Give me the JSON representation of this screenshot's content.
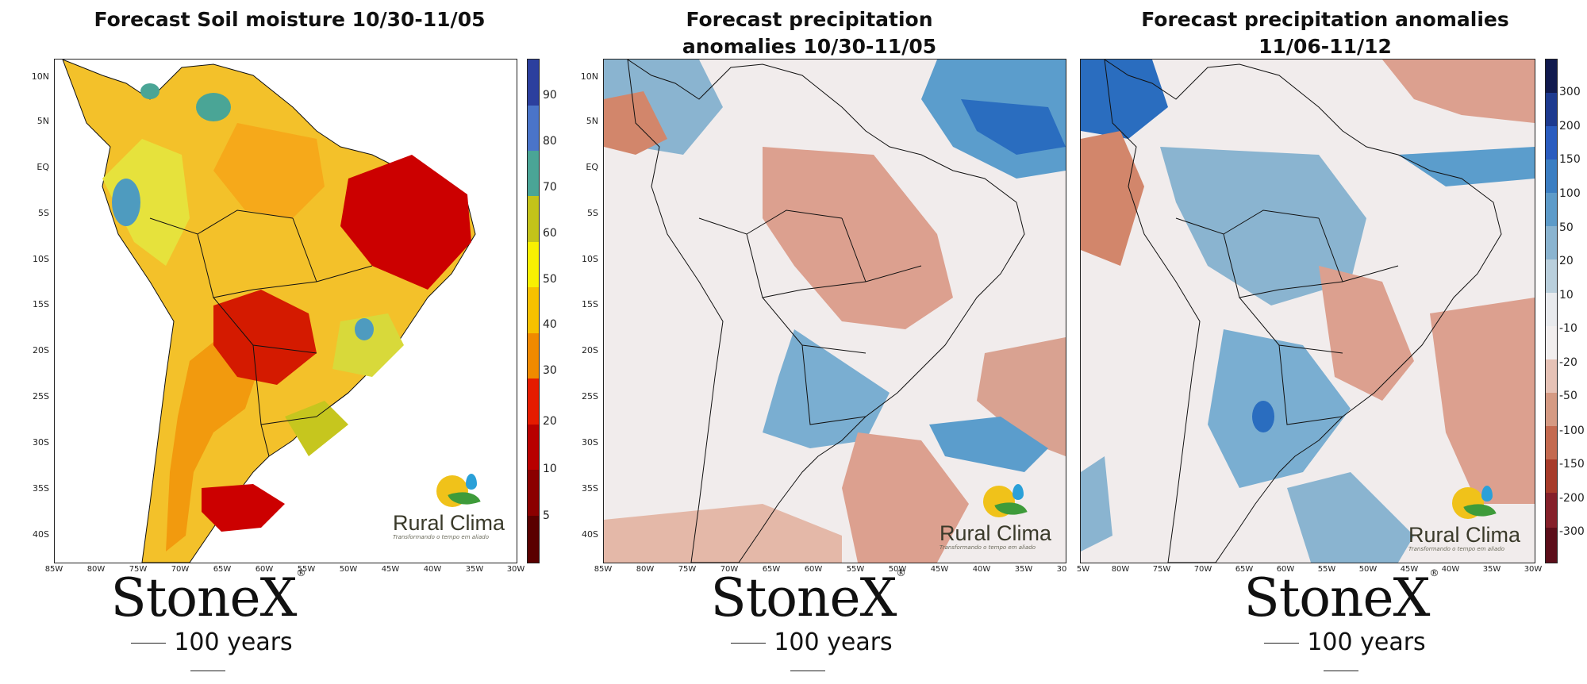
{
  "panels": [
    {
      "title": "Forecast Soil moisture 10/30-11/05",
      "lat_labels": [
        "10N",
        "5N",
        "EQ",
        "5S",
        "10S",
        "15S",
        "20S",
        "25S",
        "30S",
        "35S",
        "40S"
      ],
      "lon_labels": [
        "85W",
        "80W",
        "75W",
        "70W",
        "65W",
        "60W",
        "55W",
        "50W",
        "45W",
        "40W",
        "35W",
        "30W"
      ],
      "variable": "soil_moisture"
    },
    {
      "title": "Forecast precipitation anomalies 10/30-11/05",
      "lat_labels": [
        "10N",
        "5N",
        "EQ",
        "5S",
        "10S",
        "15S",
        "20S",
        "25S",
        "30S",
        "35S",
        "40S"
      ],
      "lon_labels": [
        "85W",
        "80W",
        "75W",
        "70W",
        "65W",
        "60W",
        "55W",
        "50W",
        "45W",
        "40W",
        "35W",
        "30"
      ],
      "variable": "precip_anomaly"
    },
    {
      "title": "Forecast precipitation anomalies 11/06-11/12",
      "lat_labels": [],
      "lon_labels": [
        "5W",
        "80W",
        "75W",
        "70W",
        "65W",
        "60W",
        "55W",
        "50W",
        "45W",
        "40W",
        "35W",
        "30W"
      ],
      "variable": "precip_anomaly"
    }
  ],
  "soil_colorbar": {
    "labels": [
      "90",
      "80",
      "70",
      "60",
      "50",
      "40",
      "30",
      "20",
      "10",
      "5"
    ],
    "colors": [
      "#2c3f9e",
      "#4a74c9",
      "#4aa596",
      "#c3c31a",
      "#f8f002",
      "#f6c100",
      "#f08a00",
      "#e51b00",
      "#b80000",
      "#8b0000",
      "#5a0000"
    ]
  },
  "precip_colorbar": {
    "labels": [
      "300",
      "200",
      "150",
      "100",
      "50",
      "20",
      "10",
      "-10",
      "-20",
      "-50",
      "-100",
      "-150",
      "-200",
      "-300"
    ],
    "colors": [
      "#111a4e",
      "#1d3a8f",
      "#2a5cbf",
      "#3b7ec2",
      "#5d9bc9",
      "#8ab4d0",
      "#b9cfdc",
      "#e8eaed",
      "#f1eeee",
      "#e6c2b6",
      "#d59a83",
      "#c46a50",
      "#a73b2a",
      "#85202a",
      "#5c0e1a"
    ]
  },
  "branding": {
    "logo_name": "Rural Clima",
    "logo_tagline": "Transformando o tempo em aliado",
    "company": "StoneX",
    "registered": "®",
    "years": "100 years"
  },
  "colors": {
    "soil_dry": "#d40000",
    "soil_mid": "#f4a300",
    "soil_wet": "#e8e43a",
    "precip_positive": "#5b9dcc",
    "precip_negative": "#dca08f",
    "precip_neutral": "#f1ecec"
  }
}
